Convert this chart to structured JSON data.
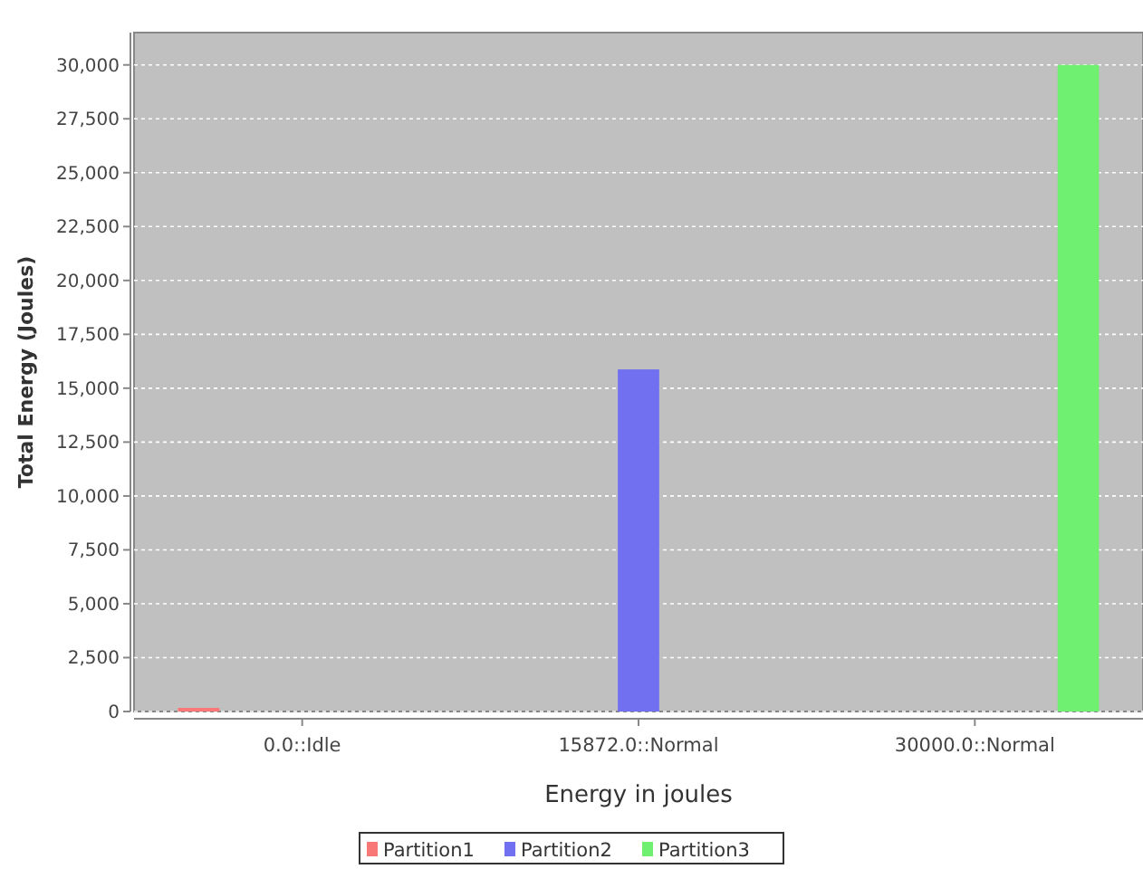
{
  "chart_data": {
    "type": "bar",
    "xlabel": "Energy in joules",
    "ylabel": "Total Energy (Joules)",
    "categories": [
      "0.0::Idle",
      "15872.0::Normal",
      "30000.0::Normal"
    ],
    "series": [
      {
        "name": "Partition1",
        "color": "#f87878",
        "values": [
          0,
          null,
          null
        ]
      },
      {
        "name": "Partition2",
        "color": "#7070f0",
        "values": [
          null,
          15872,
          null
        ]
      },
      {
        "name": "Partition3",
        "color": "#70f070",
        "values": [
          null,
          null,
          30000
        ]
      }
    ],
    "ylim": [
      0,
      31500
    ],
    "yticks": [
      {
        "value": 0,
        "label": "0"
      },
      {
        "value": 2500,
        "label": "2,500"
      },
      {
        "value": 5000,
        "label": "5,000"
      },
      {
        "value": 7500,
        "label": "7,500"
      },
      {
        "value": 10000,
        "label": "10,000"
      },
      {
        "value": 12500,
        "label": "12,500"
      },
      {
        "value": 15000,
        "label": "15,000"
      },
      {
        "value": 17500,
        "label": "17,500"
      },
      {
        "value": 20000,
        "label": "20,000"
      },
      {
        "value": 22500,
        "label": "22,500"
      },
      {
        "value": 25000,
        "label": "25,000"
      },
      {
        "value": 27500,
        "label": "27,500"
      },
      {
        "value": 30000,
        "label": "30,000"
      }
    ],
    "grid": "y",
    "legend": "bottom"
  }
}
